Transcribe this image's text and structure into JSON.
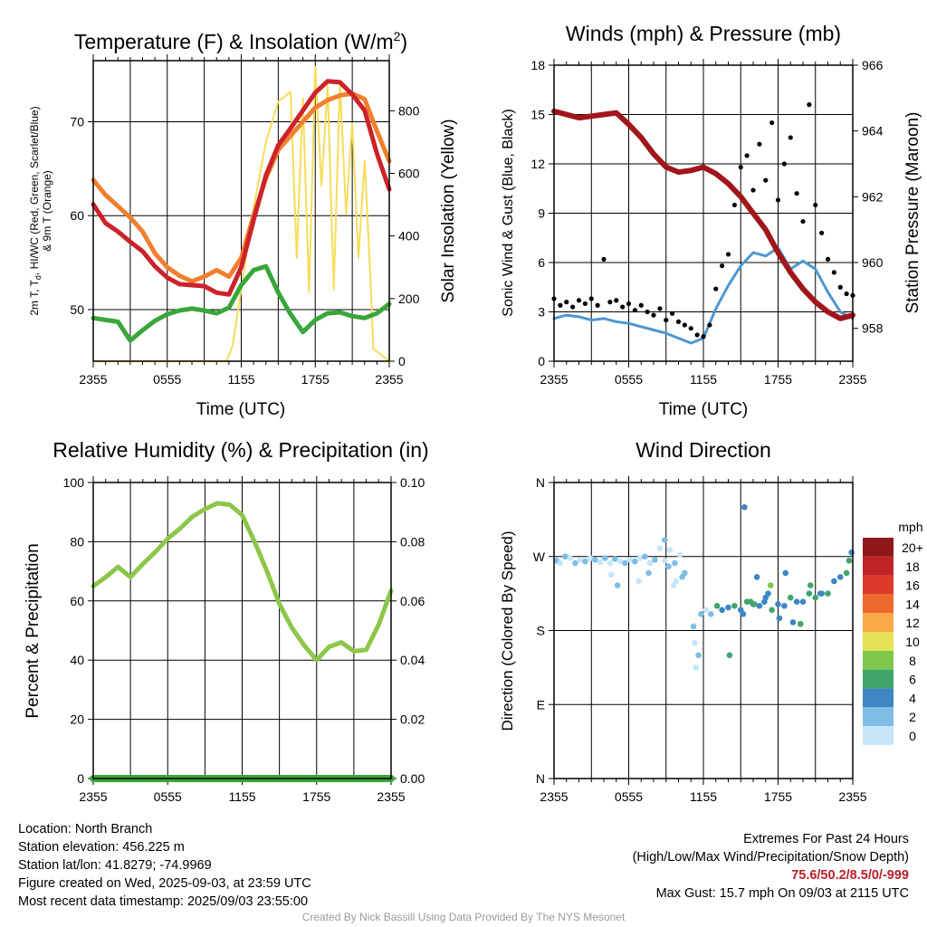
{
  "colors": {
    "temp_2m": "#cc2229",
    "temp_9m": "#f07f2e",
    "dewpoint": "#3aa63a",
    "solar": "#f7dc5a",
    "wind_speed": "#4f96cf",
    "wind_gust": "#000000",
    "pressure": "#a0161b",
    "humidity": "#8dc64a",
    "precip": "#3aa63a",
    "grid": "#000000"
  },
  "chart_data": [
    {
      "id": "temperature",
      "type": "line",
      "title_main": "Temperature (F) & Insolation (W/m",
      "title_sup": "2",
      "title_close": ")",
      "xlabel": "Time (UTC)",
      "ylabel_line1": "2m T, T",
      "ylabel_sub": "d",
      "ylabel_line1b": ", HI/WC (Red, Green, Scarlet/Blue)",
      "ylabel_line2": "& 9m T (Orange)",
      "ylabel_right": "Solar Insolation (Yellow)",
      "x_ticks": [
        "2355",
        "0555",
        "1155",
        "1755",
        "2355"
      ],
      "ylim": [
        44.5,
        76.5
      ],
      "y_ticks": [
        50,
        60,
        70
      ],
      "ylim_right": [
        0,
        960
      ],
      "y_ticks_right": [
        0,
        200,
        400,
        600,
        800
      ],
      "series": [
        {
          "key": "t9m",
          "x": [
            0,
            1,
            2,
            3,
            4,
            5,
            6,
            7,
            8,
            9,
            10,
            11,
            12,
            13,
            14,
            15,
            16,
            17,
            18,
            19,
            20,
            21,
            22,
            23,
            24
          ],
          "values": [
            63.8,
            62.2,
            61.0,
            59.8,
            58.3,
            56.0,
            54.5,
            53.6,
            53.0,
            53.5,
            54.2,
            53.5,
            55.5,
            60.0,
            64.0,
            67.0,
            68.5,
            70.0,
            71.5,
            72.3,
            72.8,
            73.0,
            72.4,
            69.0,
            65.8
          ]
        },
        {
          "key": "t2m",
          "x": [
            0,
            1,
            2,
            3,
            4,
            5,
            6,
            7,
            8,
            9,
            10,
            11,
            12,
            13,
            14,
            15,
            16,
            17,
            18,
            19,
            20,
            21,
            22,
            23,
            24
          ],
          "values": [
            61.2,
            59.2,
            58.3,
            57.2,
            56.2,
            54.6,
            53.4,
            52.7,
            52.6,
            52.5,
            51.8,
            51.6,
            54.5,
            59.5,
            64.3,
            67.5,
            69.3,
            71.2,
            73.1,
            74.3,
            74.2,
            72.9,
            71.2,
            66.6,
            62.8
          ]
        },
        {
          "key": "td",
          "x": [
            0,
            1,
            2,
            3,
            4,
            5,
            6,
            7,
            8,
            9,
            10,
            11,
            12,
            13,
            14,
            15,
            16,
            17,
            18,
            19,
            20,
            21,
            22,
            23,
            24
          ],
          "values": [
            49.1,
            48.9,
            48.7,
            46.7,
            47.8,
            48.8,
            49.5,
            49.9,
            50.1,
            49.9,
            49.6,
            50.2,
            52.6,
            54.2,
            54.6,
            51.8,
            49.5,
            47.6,
            48.9,
            49.6,
            49.7,
            49.3,
            49.1,
            49.6,
            50.6
          ]
        },
        {
          "key": "solar",
          "axis": "right",
          "x": [
            0,
            10.8,
            11.3,
            12.0,
            13.0,
            14.0,
            15.0,
            16.0,
            16.5,
            17.0,
            17.5,
            18.0,
            18.5,
            19.0,
            19.5,
            20.0,
            20.5,
            21.0,
            21.5,
            22.0,
            22.5,
            22.7,
            24
          ],
          "values": [
            0,
            0,
            50,
            230,
            490,
            700,
            830,
            860,
            330,
            840,
            220,
            940,
            560,
            880,
            230,
            890,
            470,
            760,
            330,
            640,
            240,
            40,
            0
          ]
        }
      ]
    },
    {
      "id": "winds",
      "type": "line",
      "title": "Winds (mph) & Pressure (mb)",
      "xlabel": "Time (UTC)",
      "ylabel": "Sonic Wind & Gust (Blue, Black)",
      "ylabel_right": "Station Pressure (Maroon)",
      "x_ticks": [
        "2355",
        "0555",
        "1155",
        "1755",
        "2355"
      ],
      "ylim": [
        0,
        18
      ],
      "y_ticks": [
        0,
        3,
        6,
        9,
        12,
        15,
        18
      ],
      "ylim_right": [
        957,
        966
      ],
      "y_ticks_right": [
        958,
        960,
        962,
        964,
        966
      ],
      "series": [
        {
          "key": "speed",
          "x": [
            0,
            1,
            2,
            3,
            4,
            5,
            6,
            7,
            8,
            9,
            10,
            11,
            12,
            13,
            14,
            15,
            16,
            17,
            18,
            19,
            20,
            21,
            22,
            23,
            24
          ],
          "values": [
            2.6,
            2.8,
            2.7,
            2.5,
            2.6,
            2.4,
            2.3,
            2.1,
            1.9,
            1.7,
            1.4,
            1.1,
            1.4,
            3.2,
            4.6,
            5.8,
            6.6,
            6.4,
            6.9,
            5.6,
            6.1,
            5.6,
            4.2,
            3.0,
            2.6
          ]
        },
        {
          "key": "gust",
          "type": "scatter",
          "x": [
            0,
            0.5,
            1,
            1.5,
            2,
            2.5,
            3,
            3.5,
            4,
            4.5,
            5,
            5.5,
            6,
            6.5,
            7,
            7.5,
            8,
            8.5,
            9,
            9.5,
            10,
            10.5,
            11,
            11.5,
            12,
            12.5,
            13,
            13.5,
            14,
            14.5,
            15,
            15.5,
            16,
            16.5,
            17,
            17.5,
            18,
            18.5,
            19,
            19.5,
            20,
            20.5,
            21,
            21.5,
            22,
            22.5,
            23,
            23.5,
            24
          ],
          "values": [
            3.8,
            3.4,
            3.6,
            3.3,
            3.7,
            3.5,
            3.8,
            3.4,
            6.2,
            3.6,
            3.7,
            3.3,
            3.5,
            3.1,
            3.4,
            3.0,
            2.8,
            3.2,
            2.5,
            2.9,
            2.4,
            2.2,
            2.0,
            1.6,
            1.5,
            2.2,
            4.4,
            5.8,
            6.5,
            9.5,
            11.8,
            12.5,
            10.4,
            13.2,
            11.0,
            14.5,
            9.8,
            12.0,
            13.6,
            10.2,
            8.5,
            15.6,
            9.5,
            7.8,
            6.2,
            5.4,
            4.5,
            4.1,
            4.0
          ]
        },
        {
          "key": "pressure",
          "axis": "right",
          "x": [
            0,
            1,
            2,
            3,
            4,
            5,
            6,
            7,
            8,
            9,
            10,
            11,
            12,
            13,
            14,
            15,
            16,
            17,
            18,
            19,
            20,
            21,
            22,
            23,
            24
          ],
          "values": [
            964.6,
            964.5,
            964.4,
            964.45,
            964.5,
            964.55,
            964.2,
            963.8,
            963.3,
            962.9,
            962.75,
            962.8,
            962.9,
            962.7,
            962.4,
            962.0,
            961.5,
            961.0,
            960.3,
            959.7,
            959.2,
            958.8,
            958.5,
            958.3,
            958.4
          ]
        }
      ]
    },
    {
      "id": "humidity",
      "type": "line",
      "title": "Relative Humidity (%) & Precipitation (in)",
      "xlabel": "",
      "ylabel": "Percent & Precipitation",
      "x_ticks": [
        "2355",
        "0555",
        "1155",
        "1755",
        "2355"
      ],
      "ylim": [
        0,
        100
      ],
      "y_ticks": [
        0,
        20,
        40,
        60,
        80,
        100
      ],
      "ylim_right": [
        0,
        0.1
      ],
      "y_ticks_right": [
        "0.00",
        "0.02",
        "0.04",
        "0.06",
        "0.08",
        "0.10"
      ],
      "series": [
        {
          "key": "rh",
          "x": [
            0,
            1,
            2,
            3,
            4,
            5,
            6,
            7,
            8,
            9,
            10,
            11,
            12,
            13,
            14,
            15,
            16,
            17,
            18,
            19,
            20,
            21,
            22,
            23,
            24
          ],
          "values": [
            65.0,
            68.0,
            71.5,
            68.0,
            72.5,
            76.5,
            81.0,
            84.5,
            88.5,
            91.0,
            93.0,
            92.5,
            89.0,
            80.0,
            70.0,
            59.0,
            51.0,
            45.0,
            40.0,
            44.5,
            46.0,
            43.0,
            43.5,
            52.0,
            63.5
          ]
        },
        {
          "key": "precip",
          "x": [
            0,
            24
          ],
          "values": [
            0,
            0
          ]
        }
      ]
    },
    {
      "id": "direction",
      "type": "scatter",
      "title": "Wind Direction",
      "xlabel": "",
      "ylabel": "Direction (Colored By Speed)",
      "x_ticks": [
        "2355",
        "0555",
        "1155",
        "1755",
        "2355"
      ],
      "y_ticks": [
        "N",
        "E",
        "S",
        "W",
        "N"
      ],
      "ylim": [
        0,
        360
      ],
      "legend_title": "mph",
      "legend_labels": [
        "0",
        "2",
        "4",
        "6",
        "8",
        "10",
        "12",
        "14",
        "16",
        "18",
        "20+"
      ],
      "legend_colors": [
        "#c6e6f8",
        "#7fbde6",
        "#3f86c4",
        "#3fa56a",
        "#7fc74a",
        "#e5e257",
        "#f9a947",
        "#ee6a2c",
        "#dc3a2b",
        "#c02326",
        "#8f1819"
      ],
      "legend_placement": "right",
      "series": [
        {
          "name": "",
          "x": [
            0.2,
            0.5,
            0.9,
            1.3,
            1.7,
            2.1,
            2.5,
            2.9,
            3.3,
            3.7,
            4.1,
            4.5,
            4.9,
            5.3,
            5.7,
            6.1,
            6.5,
            6.9,
            7.3,
            7.7,
            8.1,
            8.5,
            8.9,
            9.3,
            9.7,
            10.1,
            10.5,
            4.6,
            5.1,
            6.8,
            7.6,
            8.9,
            9.2,
            9.8,
            10.3,
            9.6,
            11.8,
            12.2,
            12.6,
            13.1,
            13.5,
            14.0,
            14.5,
            15.0,
            15.5,
            16.0,
            16.5,
            17.0,
            17.5,
            18.0,
            18.5,
            19.0,
            19.5,
            20.0,
            20.5,
            21.0,
            21.5,
            22.0,
            22.5,
            23.0,
            23.5,
            23.9,
            15.2,
            15.8,
            16.3,
            16.9,
            17.4,
            18.1,
            17.2,
            16.1,
            11.2,
            11.3,
            11.6,
            11.4,
            15.3,
            14.1,
            19.2,
            19.8,
            20.6,
            21.4,
            18.6,
            23.7
          ],
          "values": [
            265,
            262,
            270,
            268,
            262,
            266,
            264,
            268,
            266,
            263,
            268,
            262,
            267,
            264,
            262,
            266,
            264,
            268,
            270,
            262,
            266,
            280,
            290,
            278,
            262,
            272,
            250,
            248,
            235,
            240,
            250,
            265,
            258,
            240,
            245,
            235,
            200,
            205,
            200,
            210,
            205,
            208,
            210,
            205,
            215,
            212,
            210,
            220,
            205,
            212,
            210,
            220,
            215,
            215,
            225,
            220,
            225,
            225,
            240,
            245,
            250,
            275,
            200,
            215,
            245,
            215,
            235,
            195,
            225,
            212,
            185,
            165,
            150,
            135,
            330,
            150,
            190,
            188,
            235,
            225,
            250,
            265
          ]
        }
      ]
    }
  ],
  "info": {
    "location": "Location: North Branch",
    "elevation": "Station elevation: 456.225 m",
    "latlon": "Station lat/lon: 41.8279; -74.9969",
    "created": "Figure created on Wed, 2025-09-03, at 23:59 UTC",
    "recent": "Most recent data timestamp: 2025/09/03 23:55:00"
  },
  "extremes": {
    "title": "Extremes For Past 24 Hours",
    "subtitle": "(High/Low/Max Wind/Precipitation/Snow Depth)",
    "values": "75.6/50.2/8.5/0/-999",
    "gust": "Max Gust: 15.7 mph On 09/03 at 2115 UTC"
  },
  "credit": "Created By Nick Bassill Using Data Provided By The NYS Mesonet"
}
